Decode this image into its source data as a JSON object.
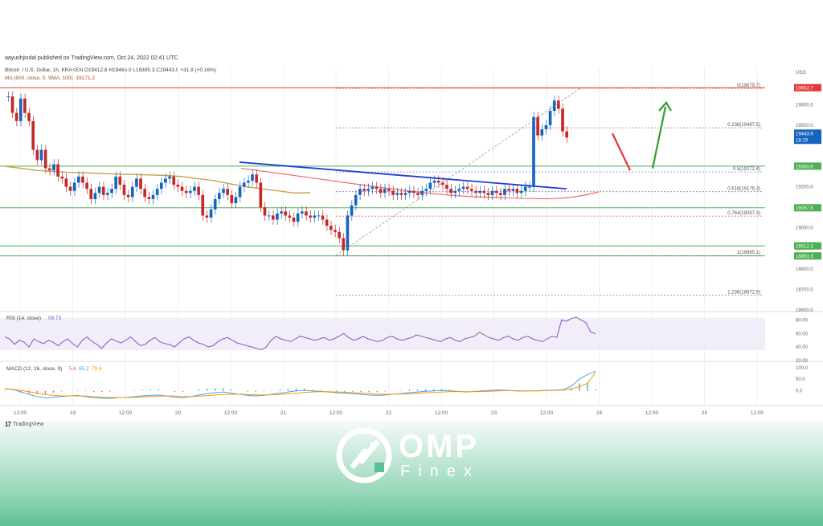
{
  "header": {
    "published": "aayushjindal published on TradingView.com, Oct 24, 2022 02:41 UTC",
    "symbol_line": "Bitcoin / U.S. Dollar, 1h, KRAKEN  O19412.8  H19464.0  L19395.3  C19443.9  +31.9 (+0.16%)",
    "ma_label": "MA (500, close, 0, SMA, 100)",
    "ma_value": "19171.2"
  },
  "footer": {
    "tradingview_label": "TradingView"
  },
  "brand": {
    "name": "OMP",
    "sub": "Finex"
  },
  "colors": {
    "up": "#26a69a",
    "down": "#ef5350",
    "candle_up": "#1565c0",
    "candle_down": "#c62828",
    "support": "#4caf50",
    "resistance": "#e53935",
    "trendline": "#1f3fd6",
    "ma": "#c8a24a",
    "sma_red": "#e57373",
    "rsi": "#7e57c2",
    "macd": "#42a5f5",
    "signal": "#ff9800"
  },
  "chart_data": [
    {
      "type": "candlestick",
      "title": "Bitcoin / U.S. Dollar, 1h, KRAKEN",
      "currency": "USD",
      "ylim": [
        18600,
        19750
      ],
      "x_ticks": [
        "12:00",
        "19",
        "12:00",
        "20",
        "12:00",
        "21",
        "12:00",
        "22",
        "12:00",
        "23",
        "12:00",
        "24",
        "12:00",
        "25",
        "12:00"
      ],
      "y_ticks": [
        "19600.0",
        "19500.0",
        "19200.0",
        "19100.0",
        "19000.0",
        "18900.0",
        "18800.0",
        "18700.0",
        "18600.0"
      ],
      "price_badges": [
        {
          "label": "19682.7",
          "price": 19682.7,
          "color": "#e53935"
        },
        {
          "label": "19443.9\n18:19",
          "price": 19443.9,
          "color": "#1565c0"
        },
        {
          "label": "19300.6",
          "price": 19300.6,
          "color": "#4caf50"
        },
        {
          "label": "19097.8",
          "price": 19097.8,
          "color": "#4caf50"
        },
        {
          "label": "18912.3",
          "price": 18912.3,
          "color": "#4caf50"
        },
        {
          "label": "18863.3",
          "price": 18863.3,
          "color": "#4caf50"
        }
      ],
      "fibonacci": [
        {
          "label": "0(19679.7)",
          "price": 19679.7
        },
        {
          "label": "0.236(19487.5)",
          "price": 19487.5
        },
        {
          "label": "0.5(19272.4)",
          "price": 19272.4
        },
        {
          "label": "0.618(19176.3)",
          "price": 19176.3
        },
        {
          "label": "0.764(19057.3)",
          "price": 19057.3
        },
        {
          "label": "1(18865.1)",
          "price": 18865.1
        },
        {
          "label": "1.236(18672.9)",
          "price": 18672.9
        }
      ],
      "closes": [
        19640,
        19560,
        19520,
        19630,
        19560,
        19520,
        19380,
        19330,
        19380,
        19290,
        19280,
        19310,
        19250,
        19240,
        19200,
        19180,
        19220,
        19250,
        19220,
        19190,
        19140,
        19170,
        19200,
        19160,
        19170,
        19190,
        19250,
        19210,
        19160,
        19150,
        19200,
        19240,
        19190,
        19150,
        19140,
        19160,
        19190,
        19220,
        19240,
        19250,
        19210,
        19200,
        19180,
        19170,
        19180,
        19200,
        19160,
        19060,
        19050,
        19090,
        19140,
        19170,
        19190,
        19160,
        19120,
        19150,
        19200,
        19220,
        19230,
        19260,
        19220,
        19100,
        19060,
        19060,
        19040,
        19070,
        19080,
        19060,
        19050,
        19030,
        19070,
        19080,
        19060,
        19050,
        19060,
        19060,
        19040,
        19010,
        18990,
        18980,
        18950,
        18890,
        19060,
        19110,
        19160,
        19190,
        19180,
        19190,
        19200,
        19190,
        19170,
        19190,
        19180,
        19160,
        19170,
        19160,
        19170,
        19180,
        19170,
        19160,
        19180,
        19190,
        19220,
        19230,
        19220,
        19210,
        19190,
        19170,
        19180,
        19190,
        19200,
        19190,
        19180,
        19170,
        19180,
        19170,
        19160,
        19180,
        19170,
        19160,
        19190,
        19180,
        19190,
        19170,
        19180,
        19200,
        19200,
        19540,
        19450,
        19480,
        19500,
        19570,
        19620,
        19580,
        19470,
        19440
      ],
      "ma_levels": [
        19300,
        19290,
        19280,
        19275,
        19270,
        19268,
        19265,
        19262,
        19260,
        19258,
        19255,
        19250,
        19240,
        19230,
        19215,
        19200,
        19190,
        19180,
        19170,
        19171
      ],
      "trendline": [
        [
          44,
          19330
        ],
        [
          104,
          19180
        ]
      ],
      "indicators": [
        {
          "type": "line",
          "name": "RSI (14, close)",
          "value": "59.73",
          "ylim": [
            20,
            90
          ],
          "y_ticks": [
            "80.00",
            "60.00",
            "40.00",
            "20.00"
          ],
          "values": [
            55,
            52,
            44,
            50,
            47,
            40,
            52,
            48,
            45,
            50,
            47,
            42,
            48,
            52,
            45,
            40,
            50,
            55,
            48,
            44,
            38,
            46,
            52,
            49,
            46,
            50,
            55,
            48,
            42,
            44,
            50,
            54,
            48,
            45,
            44,
            40,
            46,
            52,
            55,
            50,
            46,
            44,
            40,
            42,
            48,
            52,
            54,
            50,
            46,
            44,
            42,
            40,
            38,
            36,
            40,
            50,
            56,
            52,
            50,
            48,
            52,
            56,
            54,
            52,
            50,
            52,
            54,
            50,
            52,
            56,
            60,
            54,
            50,
            52,
            56,
            52,
            50,
            48,
            50,
            54,
            56,
            52,
            50,
            52,
            54,
            58,
            56,
            54,
            52,
            50,
            48,
            52,
            54,
            50,
            48,
            52,
            54,
            56,
            62,
            58,
            54,
            52,
            50,
            54,
            56,
            52,
            50,
            54,
            56,
            52,
            50,
            48,
            52,
            56,
            54,
            80,
            78,
            82,
            84,
            80,
            76,
            62,
            59.73
          ]
        },
        {
          "type": "line",
          "name": "MACD (12, 26, close, 9)",
          "values_label": [
            "5.6",
            "85.2",
            "79.6"
          ],
          "ylim": [
            -60,
            120
          ],
          "y_ticks": [
            "100.0",
            "50.0",
            "0.0"
          ],
          "macd": [
            10,
            5,
            -5,
            -15,
            -25,
            -30,
            -28,
            -25,
            -22,
            -20,
            -25,
            -30,
            -32,
            -33,
            -30,
            -28,
            -25,
            -22,
            -20,
            -18,
            -22,
            -28,
            -30,
            -25,
            -18,
            -12,
            -8,
            -5,
            -10,
            -15,
            -20,
            -22,
            -20,
            -15,
            -10,
            -5,
            0,
            2,
            0,
            -2,
            -5,
            -8,
            -10,
            -12,
            -15,
            -18,
            -20,
            -18,
            -15,
            -12,
            -8,
            -5,
            -2,
            0,
            2,
            0,
            -2,
            -5,
            -3,
            0,
            2,
            4,
            2,
            0,
            -1,
            0,
            1,
            2,
            3,
            5,
            20,
            50,
            70,
            85.2
          ],
          "signal": [
            8,
            6,
            2,
            -4,
            -10,
            -16,
            -20,
            -22,
            -22,
            -22,
            -23,
            -25,
            -27,
            -29,
            -29,
            -29,
            -28,
            -26,
            -25,
            -23,
            -22,
            -23,
            -25,
            -25,
            -23,
            -21,
            -18,
            -16,
            -15,
            -15,
            -16,
            -17,
            -18,
            -17,
            -16,
            -13,
            -10,
            -7,
            -5,
            -4,
            -4,
            -5,
            -6,
            -8,
            -10,
            -12,
            -14,
            -15,
            -15,
            -14,
            -13,
            -11,
            -9,
            -7,
            -5,
            -4,
            -3,
            -4,
            -4,
            -3,
            -2,
            0,
            1,
            1,
            0,
            0,
            0,
            1,
            2,
            3,
            8,
            18,
            32,
            79.6
          ],
          "histogram_last": "5.6"
        }
      ]
    }
  ]
}
